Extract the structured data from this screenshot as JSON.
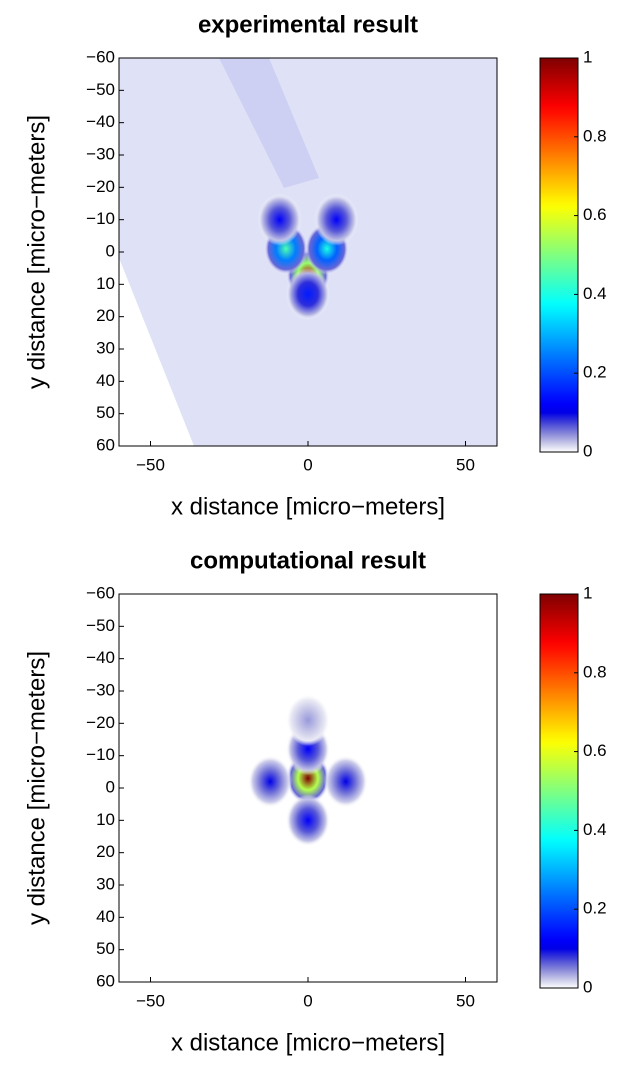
{
  "chart_data": [
    {
      "type": "heatmap",
      "title": "experimental result",
      "xlabel": "x distance [micro−meters]",
      "ylabel": "y distance [micro−meters]",
      "xlim": [
        -60,
        60
      ],
      "ylim": [
        -60,
        60
      ],
      "y_reversed": true,
      "background_noise": true,
      "colormap": "jet",
      "xticks": [
        {
          "value": -50,
          "label": "−50"
        },
        0,
        50
      ],
      "yticks": [
        {
          "value": -60,
          "label": "−60"
        },
        {
          "value": -50,
          "label": "−50"
        },
        {
          "value": -40,
          "label": "−40"
        },
        {
          "value": -30,
          "label": "−30"
        },
        {
          "value": -20,
          "label": "−20"
        },
        {
          "value": -10,
          "label": "−10"
        },
        0,
        10,
        20,
        30,
        40,
        50,
        60
      ],
      "colorbar_lim": [
        0,
        1
      ],
      "colorbar_ticks": [
        0,
        0.2,
        0.4,
        0.6,
        0.8,
        1
      ],
      "x": [
        0,
        -7,
        6,
        0,
        -9,
        9
      ],
      "y": [
        7,
        -1,
        -1,
        13,
        -10,
        -10
      ],
      "values": [
        0.95,
        0.45,
        0.4,
        0.15,
        0.12,
        0.12
      ]
    },
    {
      "type": "heatmap",
      "title": "computational result",
      "xlabel": "x distance [micro−meters]",
      "ylabel": "y distance [micro−meters]",
      "xlim": [
        -60,
        60
      ],
      "ylim": [
        -60,
        60
      ],
      "y_reversed": true,
      "background_noise": false,
      "colormap": "jet",
      "xticks": [
        {
          "value": -50,
          "label": "−50"
        },
        0,
        50
      ],
      "yticks": [
        {
          "value": -60,
          "label": "−60"
        },
        {
          "value": -50,
          "label": "−50"
        },
        {
          "value": -40,
          "label": "−40"
        },
        {
          "value": -30,
          "label": "−30"
        },
        {
          "value": -20,
          "label": "−20"
        },
        {
          "value": -10,
          "label": "−10"
        },
        0,
        10,
        20,
        30,
        40,
        50,
        60
      ],
      "colorbar_lim": [
        0,
        1
      ],
      "colorbar_ticks": [
        0,
        0.2,
        0.4,
        0.6,
        0.8,
        1
      ],
      "x": [
        0,
        0,
        0,
        -12,
        12,
        0
      ],
      "y": [
        -3,
        10,
        -12,
        -2,
        -2,
        -21
      ],
      "values": [
        1,
        0.12,
        0.12,
        0.1,
        0.1,
        0.04
      ]
    }
  ]
}
